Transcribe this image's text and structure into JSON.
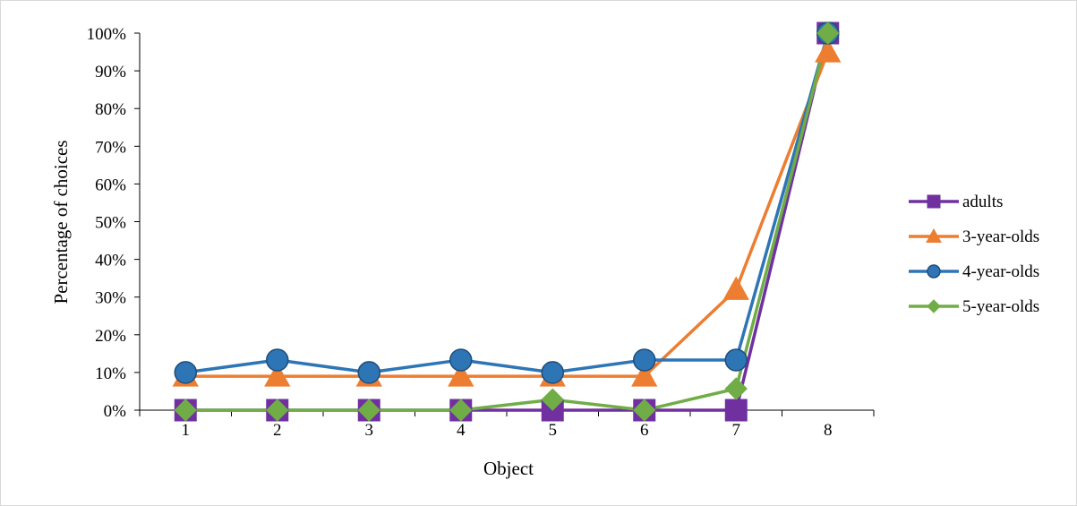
{
  "chart_data": {
    "type": "line",
    "title": "",
    "xlabel": "Object",
    "ylabel": "Percentage of choices",
    "categories": [
      "1",
      "2",
      "3",
      "4",
      "5",
      "6",
      "7",
      "8"
    ],
    "y_tick_labels": [
      "0%",
      "10%",
      "20%",
      "30%",
      "40%",
      "50%",
      "60%",
      "70%",
      "80%",
      "90%",
      "100%"
    ],
    "ylim": [
      0,
      100
    ],
    "grid": false,
    "legend_position": "right",
    "series": [
      {
        "name": "adults",
        "marker": "square",
        "color": "#7030A0",
        "values": [
          0,
          0,
          0,
          0,
          0,
          0,
          0,
          100
        ]
      },
      {
        "name": "3-year-olds",
        "marker": "triangle",
        "color": "#ED7D31",
        "values": [
          9,
          9,
          9,
          9,
          9,
          9,
          32,
          95
        ]
      },
      {
        "name": "4-year-olds",
        "marker": "circle",
        "color": "#2E75B6",
        "values": [
          10,
          13.3,
          10,
          13.3,
          10,
          13.3,
          13.3,
          100
        ]
      },
      {
        "name": "5-year-olds",
        "marker": "diamond",
        "color": "#70AD47",
        "values": [
          0,
          0,
          0,
          0,
          2.8,
          0,
          5.7,
          100
        ]
      }
    ]
  }
}
